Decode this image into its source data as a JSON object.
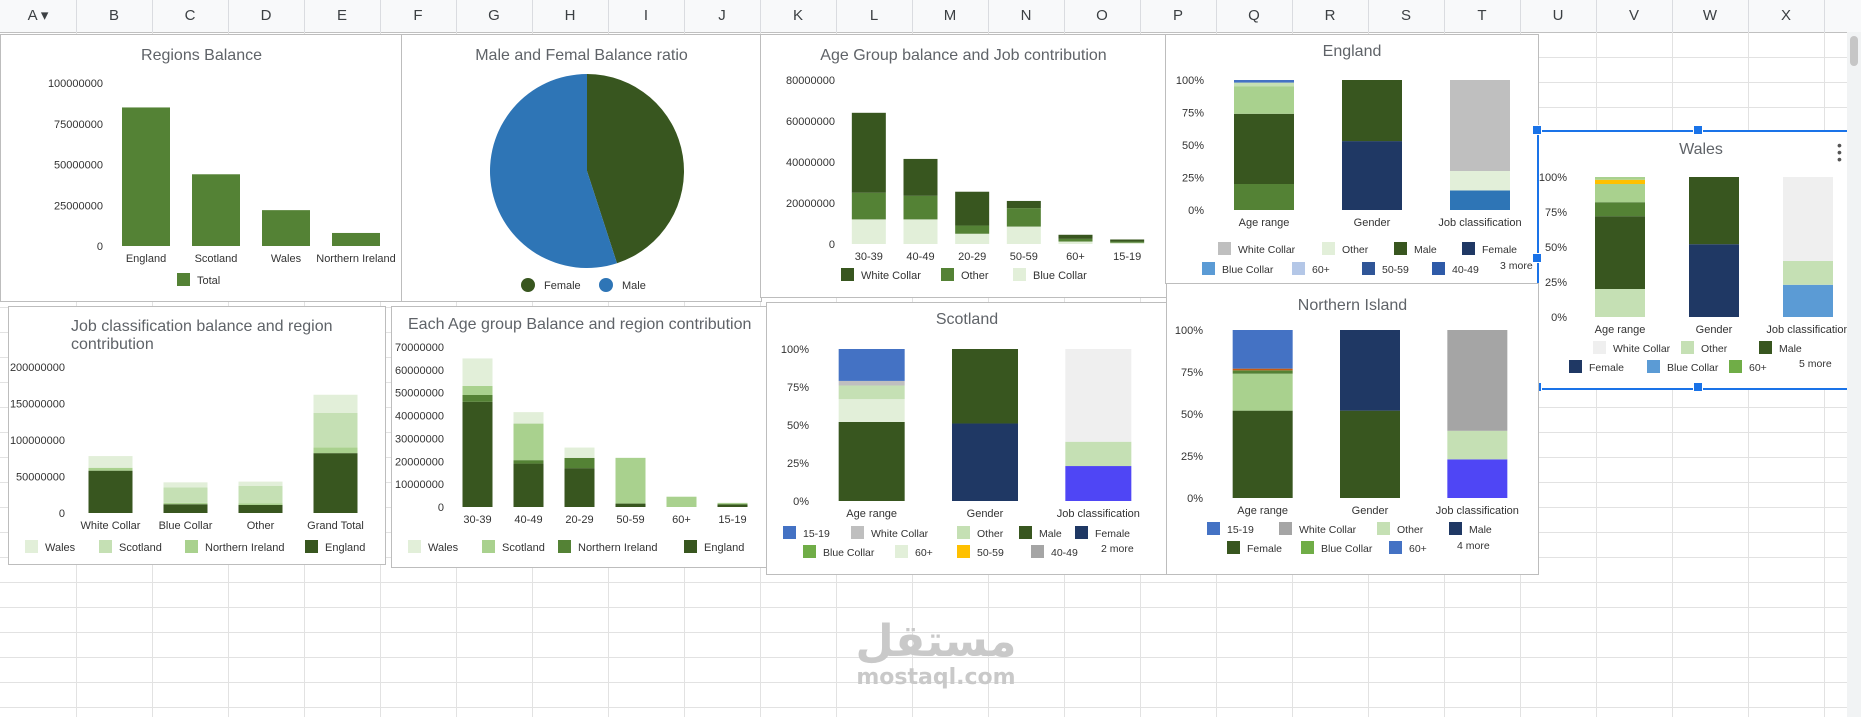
{
  "columns": [
    "A",
    "B",
    "C",
    "D",
    "E",
    "F",
    "G",
    "H",
    "I",
    "J",
    "K",
    "L",
    "M",
    "N",
    "O",
    "P",
    "Q",
    "R",
    "S",
    "T",
    "U",
    "V",
    "W",
    "X"
  ],
  "watermark": {
    "arabic": "مستقل",
    "latin": "mostaql.com"
  },
  "colors": {
    "dark_green": "#38561f",
    "mid_green": "#548235",
    "light_green": "#a9d18e",
    "pale_green": "#e2efd9",
    "lightest_green": "#c5e0b4",
    "blue": "#2e75b6",
    "navy": "#1f3864",
    "gray": "#bfbfbf",
    "light_gray": "#efefef",
    "bright_blue": "#4f46f5",
    "royal_blue": "#4472c4",
    "sky_blue": "#5b9bd5",
    "gold": "#ffc000"
  },
  "charts": {
    "regions_balance": {
      "title": "Regions Balance",
      "chart_data": {
        "type": "bar",
        "title": "Regions Balance",
        "categories": [
          "England",
          "Scotland",
          "Wales",
          "Northern Ireland"
        ],
        "series": [
          {
            "name": "Total",
            "values": [
              85000000,
              44000000,
              22000000,
              8000000
            ]
          }
        ],
        "yticks": [
          "100000000",
          "75000000",
          "50000000",
          "25000000",
          "0"
        ],
        "ylim": [
          0,
          100000000
        ]
      },
      "legend": [
        "Total"
      ]
    },
    "gender_ratio": {
      "title": "Male and Femal Balance ratio",
      "chart_data": {
        "type": "pie",
        "title": "Male and Femal Balance ratio",
        "categories": [
          "Female",
          "Male"
        ],
        "values": [
          45,
          55
        ]
      },
      "legend": [
        "Female",
        "Male"
      ]
    },
    "age_job": {
      "title": "Age Group balance and Job contribution",
      "chart_data": {
        "type": "bar",
        "title": "Age Group balance and Job contribution",
        "categories": [
          "30-39",
          "40-49",
          "20-29",
          "50-59",
          "60+",
          "15-19"
        ],
        "series": [
          {
            "name": "Blue Collar",
            "values": [
              12000000,
              12000000,
              5000000,
              8500000,
              1200000,
              600000
            ]
          },
          {
            "name": "Other",
            "values": [
              13000000,
              11500000,
              4000000,
              9000000,
              1300000,
              600000
            ]
          },
          {
            "name": "White Collar",
            "values": [
              39000000,
              18000000,
              16500000,
              3500000,
              2000000,
              1000000
            ]
          }
        ],
        "yticks": [
          "80000000",
          "60000000",
          "40000000",
          "20000000",
          "0"
        ],
        "ylim": [
          0,
          80000000
        ]
      },
      "legend": [
        "White Collar",
        "Other",
        "Blue Collar"
      ]
    },
    "england": {
      "title": "England",
      "chart_data": {
        "type": "bar",
        "title": "England",
        "categories": [
          "Age range",
          "Gender",
          "Job classification"
        ],
        "stacks": [
          [
            {
              "c": "#548235",
              "v": 20
            },
            {
              "c": "#38561f",
              "v": 54
            },
            {
              "c": "#a9d18e",
              "v": 21
            },
            {
              "c": "#c5e0b4",
              "v": 3
            },
            {
              "c": "#4472c4",
              "v": 2
            }
          ],
          [
            {
              "c": "#1f3864",
              "v": 53
            },
            {
              "c": "#38561f",
              "v": 47
            }
          ],
          [
            {
              "c": "#2e75b6",
              "v": 15
            },
            {
              "c": "#e2efd9",
              "v": 15
            },
            {
              "c": "#bfbfbf",
              "v": 70
            }
          ]
        ],
        "yticks": [
          "100%",
          "75%",
          "50%",
          "25%",
          "0%"
        ]
      },
      "legend": [
        {
          "label": "White Collar",
          "color": "#bfbfbf"
        },
        {
          "label": "Other",
          "color": "#e2efd9"
        },
        {
          "label": "Male",
          "color": "#38561f"
        },
        {
          "label": "Female",
          "color": "#1f3864"
        },
        {
          "label": "Blue Collar",
          "color": "#5b9bd5"
        },
        {
          "label": "60+",
          "color": "#b4c7e7"
        },
        {
          "label": "50-59",
          "color": "#2f5597"
        },
        {
          "label": "40-49",
          "color": "#2e5aa8"
        }
      ],
      "more": "3 more"
    },
    "wales": {
      "title": "Wales",
      "chart_data": {
        "type": "bar",
        "title": "Wales",
        "categories": [
          "Age range",
          "Gender",
          "Job classification"
        ],
        "stacks": [
          [
            {
              "c": "#c5e0b4",
              "v": 20
            },
            {
              "c": "#38561f",
              "v": 52
            },
            {
              "c": "#548235",
              "v": 10
            },
            {
              "c": "#a9d18e",
              "v": 13
            },
            {
              "c": "#ffc000",
              "v": 3
            },
            {
              "c": "#a9d18e",
              "v": 2
            }
          ],
          [
            {
              "c": "#1f3864",
              "v": 52
            },
            {
              "c": "#38561f",
              "v": 48
            }
          ],
          [
            {
              "c": "#5b9bd5",
              "v": 23
            },
            {
              "c": "#c5e0b4",
              "v": 17
            },
            {
              "c": "#efefef",
              "v": 60
            }
          ]
        ],
        "yticks": [
          "100%",
          "75%",
          "50%",
          "25%",
          "0%"
        ]
      },
      "legend": [
        {
          "label": "White Collar",
          "color": "#efefef"
        },
        {
          "label": "Other",
          "color": "#c5e0b4"
        },
        {
          "label": "Male",
          "color": "#38561f"
        },
        {
          "label": "Female",
          "color": "#1f3864"
        },
        {
          "label": "Blue Collar",
          "color": "#5b9bd5"
        },
        {
          "label": "60+",
          "color": "#70ad47"
        }
      ],
      "more": "5 more"
    },
    "job_region": {
      "title_line1": "Job classification balance and region",
      "title_line2": "contribution",
      "chart_data": {
        "type": "bar",
        "title": "Job classification balance and region contribution",
        "categories": [
          "White Collar",
          "Blue Collar",
          "Other",
          "Grand Total"
        ],
        "series": [
          {
            "name": "England",
            "values": [
              58000000,
              12000000,
              11000000,
              82000000
            ]
          },
          {
            "name": "Northern Ireland",
            "values": [
              4000000,
              2000000,
              2000000,
              8000000
            ]
          },
          {
            "name": "Scotland",
            "values": [
              0,
              21000000,
              24000000,
              47000000
            ]
          },
          {
            "name": "Wales",
            "values": [
              16000000,
              7000000,
              6000000,
              25000000
            ]
          }
        ],
        "yticks": [
          "200000000",
          "150000000",
          "100000000",
          "50000000",
          "0"
        ],
        "ylim": [
          0,
          200000000
        ]
      },
      "legend": [
        "Wales",
        "Scotland",
        "Northern Ireland",
        "England"
      ]
    },
    "age_region": {
      "title": "Each Age group Balance and region contribution",
      "chart_data": {
        "type": "bar",
        "title": "Each Age group Balance and region contribution",
        "categories": [
          "30-39",
          "40-49",
          "20-29",
          "50-59",
          "60+",
          "15-19"
        ],
        "series": [
          {
            "name": "England",
            "values": [
              46000000,
              19000000,
              17000000,
              1500000,
              0,
              1000000
            ]
          },
          {
            "name": "Northern Ireland",
            "values": [
              3000000,
              1500000,
              4500000,
              0,
              0,
              400000
            ]
          },
          {
            "name": "Scotland",
            "values": [
              4000000,
              16000000,
              0,
              20000000,
              4500000,
              400000
            ]
          },
          {
            "name": "Wales",
            "values": [
              12000000,
              5000000,
              4500000,
              0,
              0,
              0
            ]
          }
        ],
        "yticks": [
          "70000000",
          "60000000",
          "50000000",
          "40000000",
          "30000000",
          "20000000",
          "10000000",
          "0"
        ],
        "ylim": [
          0,
          70000000
        ]
      },
      "legend": [
        "Wales",
        "Scotland",
        "Northern Ireland",
        "England"
      ]
    },
    "scotland": {
      "title": "Scotland",
      "chart_data": {
        "type": "bar",
        "title": "Scotland",
        "categories": [
          "Age range",
          "Gender",
          "Job classification"
        ],
        "stacks": [
          [
            {
              "c": "#38561f",
              "v": 52
            },
            {
              "c": "#e2efd9",
              "v": 15
            },
            {
              "c": "#c5e0b4",
              "v": 9
            },
            {
              "c": "#bfbfbf",
              "v": 3
            },
            {
              "c": "#4472c4",
              "v": 21
            }
          ],
          [
            {
              "c": "#1f3864",
              "v": 51
            },
            {
              "c": "#38561f",
              "v": 49
            }
          ],
          [
            {
              "c": "#4f46f5",
              "v": 23
            },
            {
              "c": "#c5e0b4",
              "v": 16
            },
            {
              "c": "#efefef",
              "v": 61
            }
          ]
        ],
        "yticks": [
          "100%",
          "75%",
          "50%",
          "25%",
          "0%"
        ]
      },
      "legend": [
        {
          "label": "15-19",
          "color": "#4472c4"
        },
        {
          "label": "White Collar",
          "color": "#bfbfbf"
        },
        {
          "label": "Other",
          "color": "#c5e0b4"
        },
        {
          "label": "Male",
          "color": "#38561f"
        },
        {
          "label": "Female",
          "color": "#1f3864"
        },
        {
          "label": "Blue Collar",
          "color": "#70ad47"
        },
        {
          "label": "60+",
          "color": "#e2efd9"
        },
        {
          "label": "50-59",
          "color": "#ffc000"
        },
        {
          "label": "40-49",
          "color": "#a5a5a5"
        }
      ],
      "more": "2 more"
    },
    "northern_island": {
      "title": "Northern Island",
      "chart_data": {
        "type": "bar",
        "title": "Northern Island",
        "categories": [
          "Age range",
          "Gender",
          "Job classification"
        ],
        "stacks": [
          [
            {
              "c": "#38561f",
              "v": 52
            },
            {
              "c": "#a9d18e",
              "v": 22
            },
            {
              "c": "#548235",
              "v": 2
            },
            {
              "c": "#c55a11",
              "v": 1
            },
            {
              "c": "#4472c4",
              "v": 23
            }
          ],
          [
            {
              "c": "#38561f",
              "v": 52
            },
            {
              "c": "#1f3864",
              "v": 48
            }
          ],
          [
            {
              "c": "#4f46f5",
              "v": 23
            },
            {
              "c": "#c5e0b4",
              "v": 17
            },
            {
              "c": "#a5a5a5",
              "v": 60
            }
          ]
        ],
        "yticks": [
          "100%",
          "75%",
          "50%",
          "25%",
          "0%"
        ]
      },
      "legend": [
        {
          "label": "15-19",
          "color": "#4472c4"
        },
        {
          "label": "White Collar",
          "color": "#a5a5a5"
        },
        {
          "label": "Other",
          "color": "#c5e0b4"
        },
        {
          "label": "Male",
          "color": "#1f3864"
        },
        {
          "label": "Female",
          "color": "#38561f"
        },
        {
          "label": "Blue Collar",
          "color": "#70ad47"
        },
        {
          "label": "60+",
          "color": "#4472c4"
        }
      ],
      "more": "4 more"
    }
  }
}
